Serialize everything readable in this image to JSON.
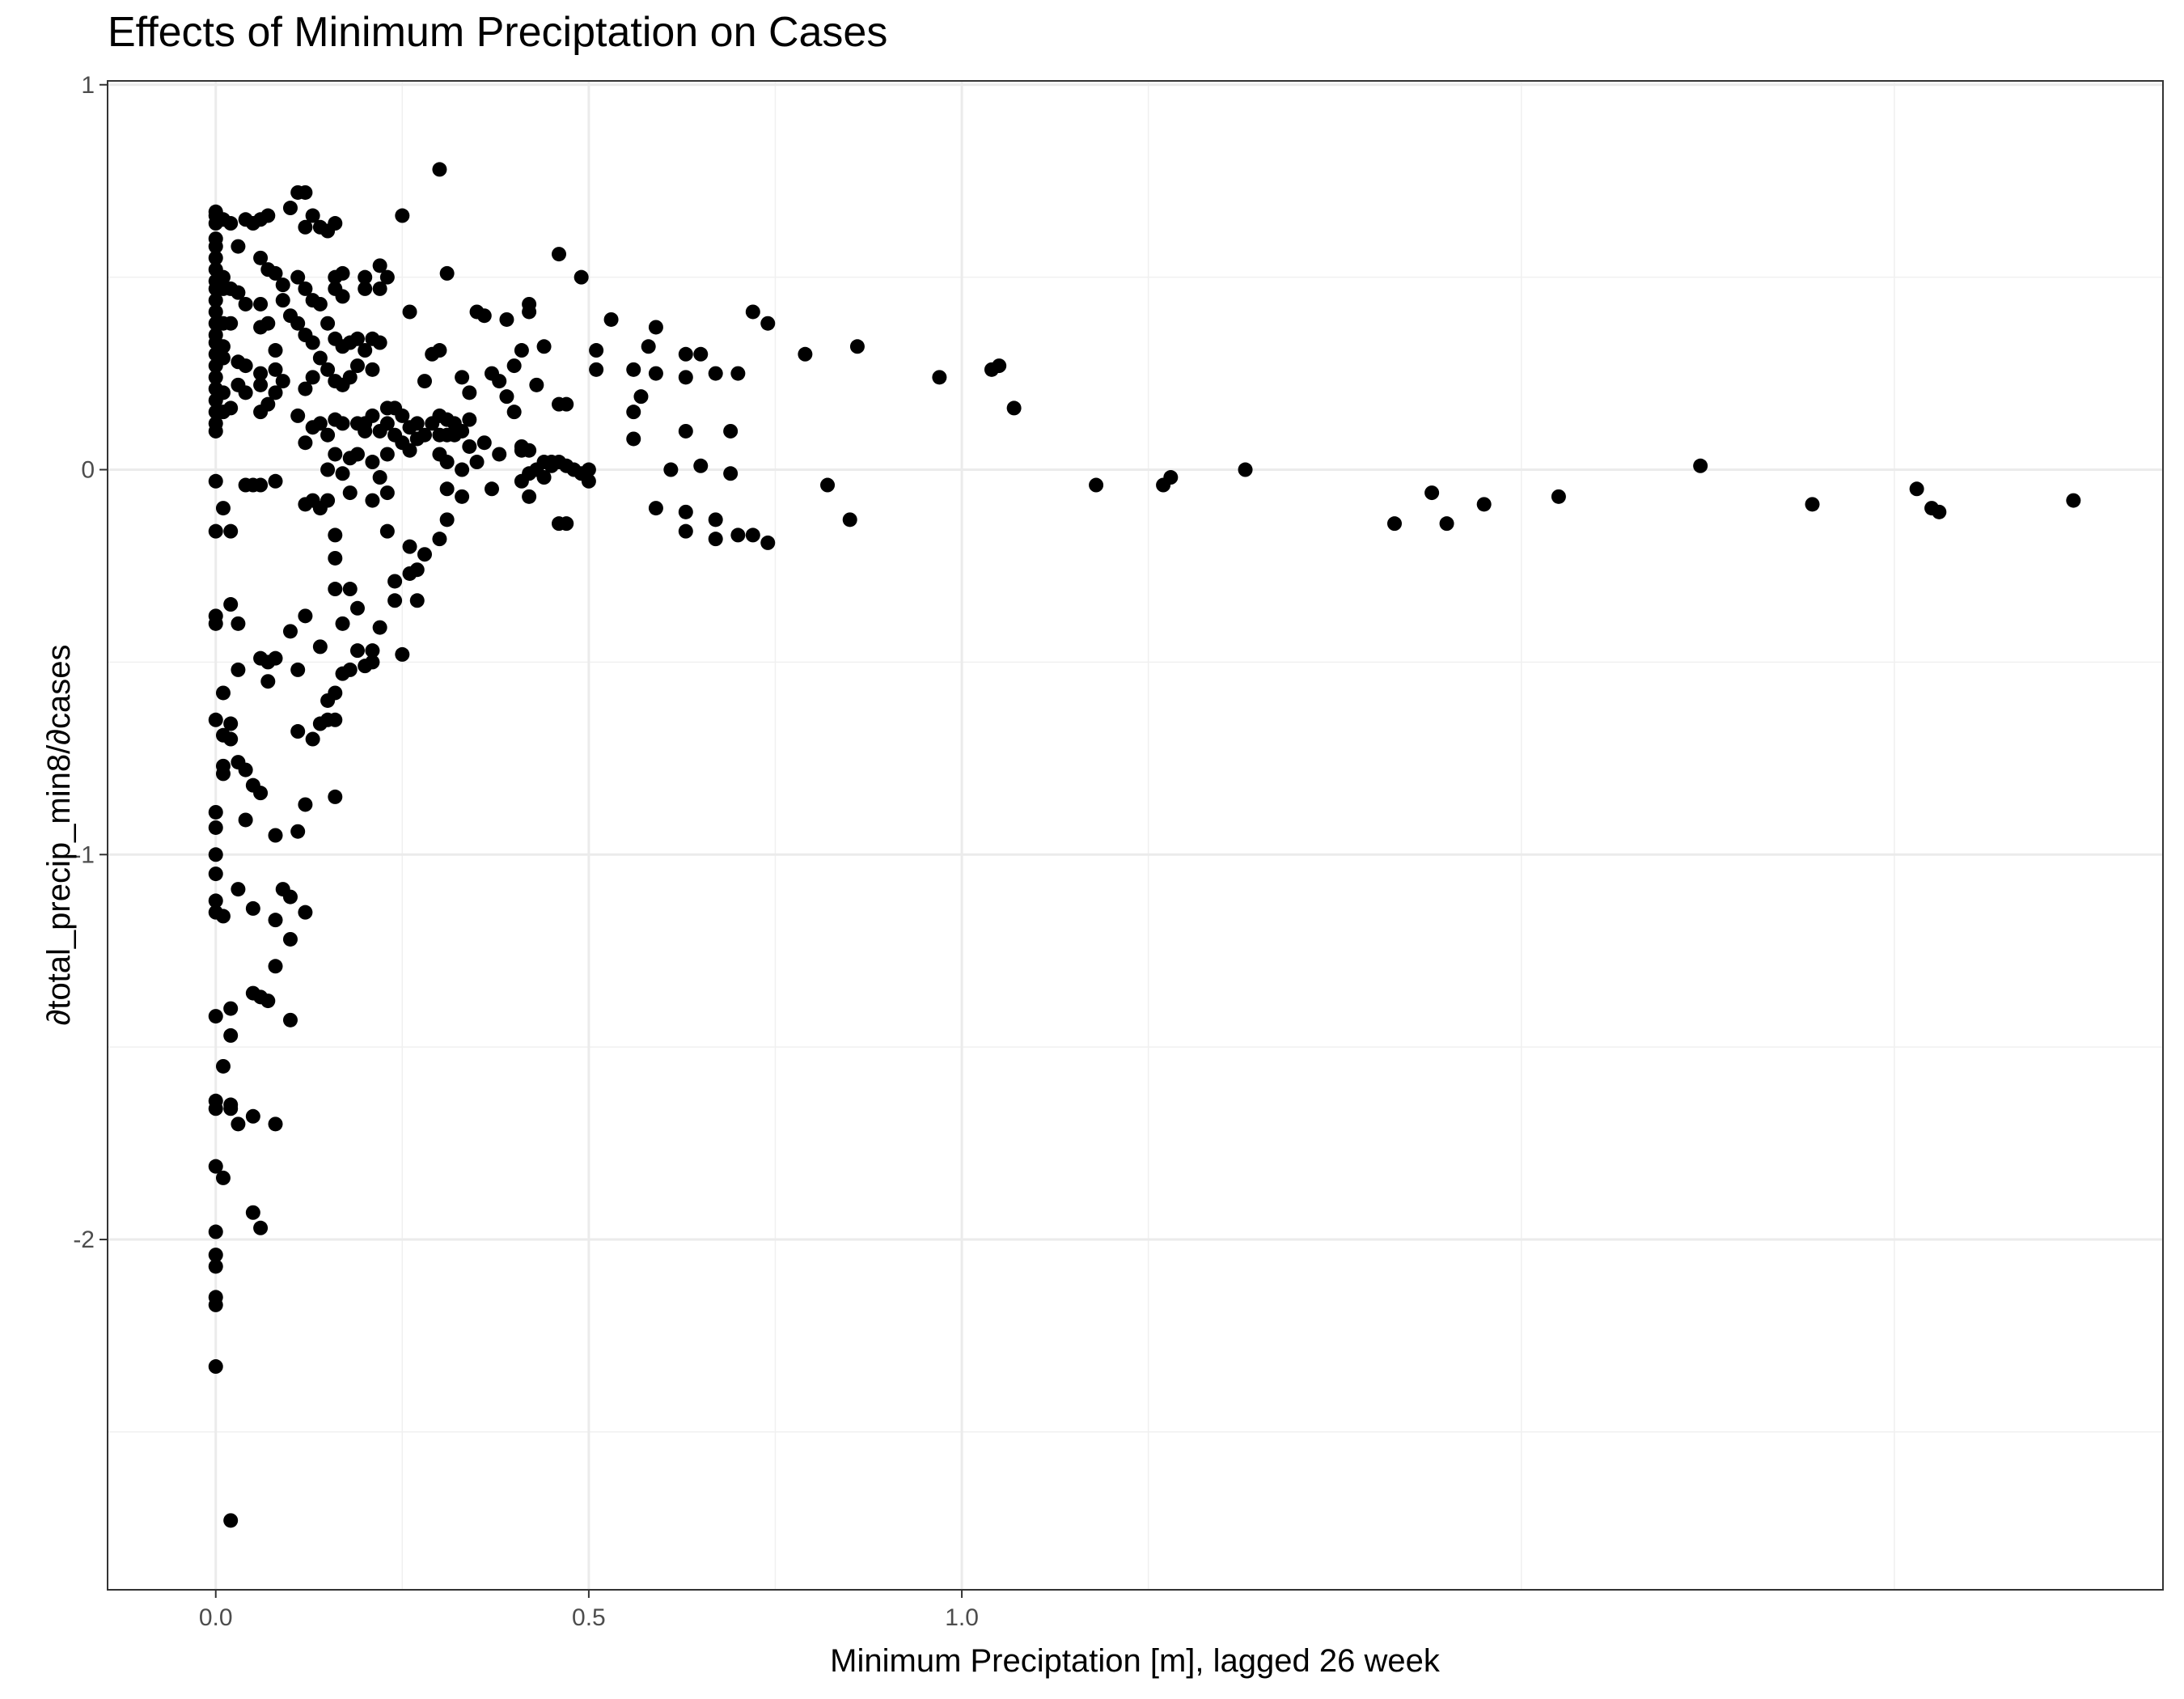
{
  "chart_data": {
    "type": "scatter",
    "title": "Effects of Minimum Preciptation on Cases",
    "xlabel": "Minimum Preciptation [m], lagged 26 week",
    "ylabel": "∂total_precip_min8/∂cases",
    "xlim": [
      -0.145,
      2.61
    ],
    "ylim": [
      -2.91,
      1.01
    ],
    "x_ticks": [
      0.0,
      0.5,
      1.0
    ],
    "x_tick_labels": [
      "0.0",
      "0.5",
      "1.0"
    ],
    "y_ticks": [
      1,
      0,
      -1,
      -2
    ],
    "y_tick_labels": [
      "1",
      "0",
      "-1",
      "-2"
    ],
    "grid": true,
    "legend": "none",
    "point_color": "#000000",
    "points": [
      [
        0.0,
        0.67
      ],
      [
        0.0,
        0.66
      ],
      [
        0.0,
        0.64
      ],
      [
        0.0,
        0.6
      ],
      [
        0.0,
        0.58
      ],
      [
        0.0,
        0.55
      ],
      [
        0.0,
        0.52
      ],
      [
        0.0,
        0.49
      ],
      [
        0.0,
        0.47
      ],
      [
        0.0,
        0.44
      ],
      [
        0.0,
        0.41
      ],
      [
        0.0,
        0.38
      ],
      [
        0.0,
        0.35
      ],
      [
        0.0,
        0.33
      ],
      [
        0.0,
        0.3
      ],
      [
        0.0,
        0.27
      ],
      [
        0.0,
        0.24
      ],
      [
        0.0,
        0.21
      ],
      [
        0.0,
        0.18
      ],
      [
        0.0,
        0.15
      ],
      [
        0.0,
        0.12
      ],
      [
        0.0,
        0.1
      ],
      [
        0.0,
        -0.03
      ],
      [
        0.0,
        -0.16
      ],
      [
        0.0,
        -0.38
      ],
      [
        0.0,
        -0.4
      ],
      [
        0.0,
        -0.65
      ],
      [
        0.0,
        -0.89
      ],
      [
        0.0,
        -0.93
      ],
      [
        0.0,
        -1.0
      ],
      [
        0.0,
        -1.05
      ],
      [
        0.0,
        -1.12
      ],
      [
        0.0,
        -1.15
      ],
      [
        0.0,
        -1.42
      ],
      [
        0.0,
        -1.64
      ],
      [
        0.0,
        -1.66
      ],
      [
        0.0,
        -1.81
      ],
      [
        0.0,
        -1.98
      ],
      [
        0.0,
        -2.04
      ],
      [
        0.0,
        -2.07
      ],
      [
        0.0,
        -2.15
      ],
      [
        0.0,
        -2.17
      ],
      [
        0.0,
        -2.33
      ],
      [
        0.01,
        0.65
      ],
      [
        0.01,
        0.5
      ],
      [
        0.01,
        0.47
      ],
      [
        0.01,
        0.38
      ],
      [
        0.01,
        0.32
      ],
      [
        0.01,
        0.29
      ],
      [
        0.01,
        0.2
      ],
      [
        0.01,
        0.15
      ],
      [
        0.01,
        -0.1
      ],
      [
        0.01,
        -0.58
      ],
      [
        0.01,
        -0.69
      ],
      [
        0.01,
        -0.77
      ],
      [
        0.01,
        -0.79
      ],
      [
        0.01,
        -1.16
      ],
      [
        0.01,
        -1.55
      ],
      [
        0.01,
        -1.84
      ],
      [
        0.02,
        0.64
      ],
      [
        0.02,
        0.47
      ],
      [
        0.02,
        0.38
      ],
      [
        0.02,
        0.16
      ],
      [
        0.02,
        -0.16
      ],
      [
        0.02,
        -0.35
      ],
      [
        0.02,
        -0.66
      ],
      [
        0.02,
        -0.7
      ],
      [
        0.02,
        -1.4
      ],
      [
        0.02,
        -1.47
      ],
      [
        0.02,
        -1.65
      ],
      [
        0.02,
        -1.66
      ],
      [
        0.03,
        0.58
      ],
      [
        0.03,
        0.46
      ],
      [
        0.03,
        0.28
      ],
      [
        0.03,
        0.22
      ],
      [
        0.03,
        -0.4
      ],
      [
        0.03,
        -0.52
      ],
      [
        0.03,
        -0.76
      ],
      [
        0.03,
        -1.09
      ],
      [
        0.03,
        -1.7
      ],
      [
        0.02,
        -2.73
      ],
      [
        0.04,
        0.65
      ],
      [
        0.04,
        0.43
      ],
      [
        0.04,
        0.27
      ],
      [
        0.04,
        0.2
      ],
      [
        0.04,
        -0.04
      ],
      [
        0.04,
        -0.78
      ],
      [
        0.04,
        -0.91
      ],
      [
        0.05,
        0.64
      ],
      [
        0.05,
        -0.04
      ],
      [
        0.05,
        -0.82
      ],
      [
        0.05,
        -1.14
      ],
      [
        0.05,
        -1.36
      ],
      [
        0.05,
        -1.68
      ],
      [
        0.05,
        -1.93
      ],
      [
        0.06,
        0.65
      ],
      [
        0.06,
        0.55
      ],
      [
        0.06,
        0.43
      ],
      [
        0.06,
        0.37
      ],
      [
        0.06,
        0.25
      ],
      [
        0.06,
        0.22
      ],
      [
        0.06,
        0.15
      ],
      [
        0.06,
        -0.04
      ],
      [
        0.06,
        -0.49
      ],
      [
        0.06,
        -0.84
      ],
      [
        0.06,
        -1.37
      ],
      [
        0.06,
        -1.97
      ],
      [
        0.07,
        0.66
      ],
      [
        0.07,
        0.52
      ],
      [
        0.07,
        0.38
      ],
      [
        0.07,
        0.17
      ],
      [
        0.07,
        -0.5
      ],
      [
        0.07,
        -0.55
      ],
      [
        0.07,
        -1.38
      ],
      [
        0.08,
        0.51
      ],
      [
        0.08,
        0.31
      ],
      [
        0.08,
        0.26
      ],
      [
        0.08,
        0.2
      ],
      [
        0.08,
        -0.03
      ],
      [
        0.08,
        -0.49
      ],
      [
        0.08,
        -0.95
      ],
      [
        0.08,
        -1.17
      ],
      [
        0.08,
        -1.29
      ],
      [
        0.08,
        -1.7
      ],
      [
        0.09,
        0.48
      ],
      [
        0.09,
        0.44
      ],
      [
        0.09,
        0.23
      ],
      [
        0.09,
        -1.09
      ],
      [
        0.1,
        0.68
      ],
      [
        0.1,
        0.4
      ],
      [
        0.1,
        -0.42
      ],
      [
        0.1,
        -1.11
      ],
      [
        0.1,
        -1.22
      ],
      [
        0.1,
        -1.43
      ],
      [
        0.11,
        0.72
      ],
      [
        0.11,
        0.5
      ],
      [
        0.11,
        0.38
      ],
      [
        0.11,
        0.14
      ],
      [
        0.11,
        -0.52
      ],
      [
        0.11,
        -0.68
      ],
      [
        0.11,
        -0.94
      ],
      [
        0.12,
        0.72
      ],
      [
        0.12,
        0.63
      ],
      [
        0.12,
        0.47
      ],
      [
        0.12,
        0.35
      ],
      [
        0.12,
        0.21
      ],
      [
        0.12,
        0.07
      ],
      [
        0.12,
        -0.09
      ],
      [
        0.12,
        -0.38
      ],
      [
        0.12,
        -0.87
      ],
      [
        0.12,
        -1.15
      ],
      [
        0.13,
        0.66
      ],
      [
        0.13,
        0.44
      ],
      [
        0.13,
        0.33
      ],
      [
        0.13,
        0.24
      ],
      [
        0.13,
        0.11
      ],
      [
        0.13,
        -0.08
      ],
      [
        0.13,
        -0.7
      ],
      [
        0.14,
        0.63
      ],
      [
        0.14,
        0.43
      ],
      [
        0.14,
        0.29
      ],
      [
        0.14,
        0.12
      ],
      [
        0.14,
        -0.1
      ],
      [
        0.14,
        -0.46
      ],
      [
        0.14,
        -0.66
      ],
      [
        0.15,
        0.62
      ],
      [
        0.15,
        0.38
      ],
      [
        0.15,
        0.26
      ],
      [
        0.15,
        0.09
      ],
      [
        0.15,
        0.0
      ],
      [
        0.15,
        -0.08
      ],
      [
        0.15,
        -0.6
      ],
      [
        0.15,
        -0.65
      ],
      [
        0.16,
        0.64
      ],
      [
        0.16,
        0.5
      ],
      [
        0.16,
        0.47
      ],
      [
        0.16,
        0.34
      ],
      [
        0.16,
        0.23
      ],
      [
        0.16,
        0.13
      ],
      [
        0.16,
        0.04
      ],
      [
        0.16,
        -0.17
      ],
      [
        0.16,
        -0.23
      ],
      [
        0.16,
        -0.31
      ],
      [
        0.16,
        -0.58
      ],
      [
        0.16,
        -0.65
      ],
      [
        0.16,
        -0.85
      ],
      [
        0.17,
        0.51
      ],
      [
        0.17,
        0.45
      ],
      [
        0.17,
        0.32
      ],
      [
        0.17,
        0.22
      ],
      [
        0.17,
        0.12
      ],
      [
        0.17,
        -0.01
      ],
      [
        0.17,
        -0.4
      ],
      [
        0.17,
        -0.53
      ],
      [
        0.18,
        0.33
      ],
      [
        0.18,
        0.24
      ],
      [
        0.18,
        0.03
      ],
      [
        0.18,
        -0.06
      ],
      [
        0.18,
        -0.31
      ],
      [
        0.18,
        -0.52
      ],
      [
        0.19,
        0.34
      ],
      [
        0.19,
        0.27
      ],
      [
        0.19,
        0.12
      ],
      [
        0.19,
        0.04
      ],
      [
        0.19,
        -0.36
      ],
      [
        0.19,
        -0.47
      ],
      [
        0.2,
        0.5
      ],
      [
        0.2,
        0.47
      ],
      [
        0.2,
        0.31
      ],
      [
        0.2,
        0.12
      ],
      [
        0.2,
        0.1
      ],
      [
        0.2,
        -0.51
      ],
      [
        0.21,
        0.34
      ],
      [
        0.21,
        0.26
      ],
      [
        0.21,
        0.14
      ],
      [
        0.21,
        0.02
      ],
      [
        0.21,
        -0.08
      ],
      [
        0.21,
        -0.47
      ],
      [
        0.21,
        -0.5
      ],
      [
        0.22,
        0.53
      ],
      [
        0.22,
        0.47
      ],
      [
        0.22,
        0.33
      ],
      [
        0.22,
        0.1
      ],
      [
        0.22,
        -0.02
      ],
      [
        0.22,
        -0.41
      ],
      [
        0.23,
        0.5
      ],
      [
        0.23,
        0.16
      ],
      [
        0.23,
        0.12
      ],
      [
        0.23,
        0.04
      ],
      [
        0.23,
        -0.06
      ],
      [
        0.23,
        -0.16
      ],
      [
        0.24,
        0.16
      ],
      [
        0.24,
        0.09
      ],
      [
        0.24,
        -0.34
      ],
      [
        0.24,
        -0.29
      ],
      [
        0.25,
        0.66
      ],
      [
        0.25,
        0.14
      ],
      [
        0.25,
        0.07
      ],
      [
        0.25,
        -0.48
      ],
      [
        0.26,
        0.41
      ],
      [
        0.26,
        0.11
      ],
      [
        0.26,
        0.05
      ],
      [
        0.26,
        -0.2
      ],
      [
        0.26,
        -0.27
      ],
      [
        0.27,
        0.12
      ],
      [
        0.27,
        0.08
      ],
      [
        0.27,
        -0.34
      ],
      [
        0.27,
        -0.26
      ],
      [
        0.28,
        0.23
      ],
      [
        0.28,
        0.09
      ],
      [
        0.28,
        -0.22
      ],
      [
        0.29,
        0.3
      ],
      [
        0.29,
        0.12
      ],
      [
        0.3,
        0.78
      ],
      [
        0.3,
        0.31
      ],
      [
        0.3,
        0.14
      ],
      [
        0.3,
        0.09
      ],
      [
        0.3,
        0.04
      ],
      [
        0.3,
        -0.18
      ],
      [
        0.31,
        0.51
      ],
      [
        0.31,
        0.13
      ],
      [
        0.31,
        0.09
      ],
      [
        0.31,
        0.02
      ],
      [
        0.31,
        -0.05
      ],
      [
        0.31,
        -0.13
      ],
      [
        0.32,
        0.12
      ],
      [
        0.32,
        0.09
      ],
      [
        0.33,
        0.24
      ],
      [
        0.33,
        0.1
      ],
      [
        0.33,
        0.0
      ],
      [
        0.33,
        -0.07
      ],
      [
        0.34,
        0.2
      ],
      [
        0.34,
        0.06
      ],
      [
        0.34,
        0.13
      ],
      [
        0.35,
        0.41
      ],
      [
        0.35,
        0.02
      ],
      [
        0.36,
        0.4
      ],
      [
        0.36,
        0.07
      ],
      [
        0.37,
        0.25
      ],
      [
        0.37,
        -0.05
      ],
      [
        0.38,
        0.23
      ],
      [
        0.38,
        0.04
      ],
      [
        0.39,
        0.39
      ],
      [
        0.39,
        0.19
      ],
      [
        0.4,
        0.27
      ],
      [
        0.4,
        0.15
      ],
      [
        0.41,
        0.31
      ],
      [
        0.41,
        0.05
      ],
      [
        0.41,
        0.06
      ],
      [
        0.41,
        -0.03
      ],
      [
        0.42,
        0.41
      ],
      [
        0.42,
        0.43
      ],
      [
        0.42,
        0.05
      ],
      [
        0.42,
        -0.01
      ],
      [
        0.42,
        -0.07
      ],
      [
        0.43,
        0.22
      ],
      [
        0.43,
        0.0
      ],
      [
        0.44,
        0.32
      ],
      [
        0.44,
        0.02
      ],
      [
        0.44,
        -0.02
      ],
      [
        0.45,
        0.02
      ],
      [
        0.45,
        0.01
      ],
      [
        0.46,
        0.56
      ],
      [
        0.46,
        0.17
      ],
      [
        0.46,
        0.02
      ],
      [
        0.46,
        -0.14
      ],
      [
        0.47,
        0.17
      ],
      [
        0.47,
        0.01
      ],
      [
        0.47,
        -0.14
      ],
      [
        0.48,
        0.0
      ],
      [
        0.49,
        0.5
      ],
      [
        0.49,
        -0.01
      ],
      [
        0.5,
        0.0
      ],
      [
        0.5,
        -0.03
      ],
      [
        0.51,
        0.26
      ],
      [
        0.51,
        0.31
      ],
      [
        0.53,
        0.39
      ],
      [
        0.56,
        0.26
      ],
      [
        0.56,
        0.15
      ],
      [
        0.56,
        0.08
      ],
      [
        0.57,
        0.19
      ],
      [
        0.58,
        0.32
      ],
      [
        0.59,
        0.37
      ],
      [
        0.59,
        0.25
      ],
      [
        0.59,
        -0.1
      ],
      [
        0.61,
        0.0
      ],
      [
        0.63,
        0.3
      ],
      [
        0.63,
        0.24
      ],
      [
        0.63,
        0.1
      ],
      [
        0.63,
        -0.11
      ],
      [
        0.63,
        -0.16
      ],
      [
        0.65,
        0.3
      ],
      [
        0.65,
        0.01
      ],
      [
        0.67,
        0.25
      ],
      [
        0.67,
        -0.13
      ],
      [
        0.67,
        -0.18
      ],
      [
        0.69,
        0.1
      ],
      [
        0.69,
        -0.01
      ],
      [
        0.7,
        0.25
      ],
      [
        0.7,
        -0.17
      ],
      [
        0.72,
        0.41
      ],
      [
        0.72,
        -0.17
      ],
      [
        0.74,
        0.38
      ],
      [
        0.74,
        -0.19
      ],
      [
        0.79,
        0.3
      ],
      [
        0.82,
        -0.04
      ],
      [
        0.85,
        -0.13
      ],
      [
        0.86,
        0.32
      ],
      [
        0.97,
        0.24
      ],
      [
        1.04,
        0.26
      ],
      [
        1.05,
        0.27
      ],
      [
        1.07,
        0.16
      ],
      [
        1.18,
        -0.04
      ],
      [
        1.27,
        -0.04
      ],
      [
        1.28,
        -0.02
      ],
      [
        1.38,
        0.0
      ],
      [
        1.58,
        -0.14
      ],
      [
        1.63,
        -0.06
      ],
      [
        1.65,
        -0.14
      ],
      [
        1.7,
        -0.09
      ],
      [
        1.8,
        -0.07
      ],
      [
        1.99,
        0.01
      ],
      [
        2.14,
        -0.09
      ],
      [
        2.28,
        -0.05
      ],
      [
        2.3,
        -0.1
      ],
      [
        2.31,
        -0.11
      ],
      [
        2.49,
        -0.08
      ]
    ]
  }
}
